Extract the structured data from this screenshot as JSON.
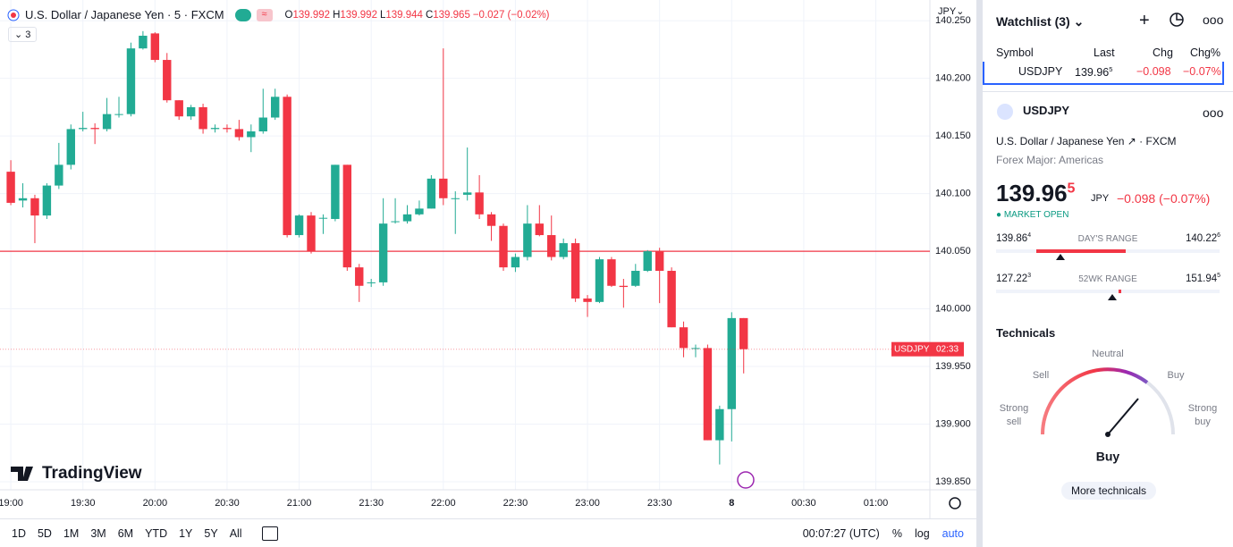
{
  "header": {
    "symbol": "U.S. Dollar / Japanese Yen · 5 · FXCM",
    "indicator_count": "3",
    "ohlc": [
      {
        "key": "O",
        "value": "139.992"
      },
      {
        "key": "H",
        "value": "139.992"
      },
      {
        "key": "L",
        "value": "139.944"
      },
      {
        "key": "C",
        "value": "139.965"
      }
    ],
    "change": "−0.027 (−0.02%)",
    "currency": "JPY"
  },
  "chart_data": {
    "type": "candlestick",
    "up_color": "#22ab94",
    "down_color": "#f23645",
    "open": [
      140.119,
      140.094,
      140.096,
      140.081,
      140.107,
      140.125,
      140.156,
      140.157,
      140.156,
      140.169,
      140.169,
      140.226,
      140.239,
      140.216,
      140.181,
      140.167,
      140.175,
      140.156,
      140.157,
      140.156,
      140.149,
      140.154,
      140.166,
      140.184,
      140.064,
      140.081,
      140.079,
      140.078,
      140.125,
      140.036,
      140.023,
      140.023,
      140.076,
      140.076,
      140.082,
      140.087,
      140.113,
      140.096,
      140.099,
      140.101,
      140.082,
      140.072,
      140.036,
      140.045,
      140.074,
      140.064,
      140.045,
      140.057,
      140.009,
      140.006,
      140.043,
      140.02,
      140.02,
      140.033,
      140.05,
      140.033,
      139.984,
      139.966,
      139.966,
      139.886,
      139.913,
      139.992
    ],
    "high": [
      140.129,
      140.109,
      140.099,
      140.109,
      140.144,
      140.16,
      140.171,
      140.161,
      140.183,
      140.184,
      140.231,
      140.241,
      140.24,
      140.222,
      140.181,
      140.177,
      140.178,
      140.16,
      140.16,
      140.164,
      140.16,
      140.191,
      140.191,
      140.186,
      140.082,
      140.084,
      140.082,
      140.125,
      140.125,
      140.039,
      140.026,
      140.096,
      140.096,
      140.09,
      140.094,
      140.116,
      140.226,
      140.102,
      140.14,
      140.116,
      140.084,
      140.074,
      140.048,
      140.09,
      140.09,
      140.081,
      140.061,
      140.061,
      140.012,
      140.045,
      140.045,
      140.026,
      140.039,
      140.051,
      140.053,
      140.036,
      139.989,
      139.969,
      139.969,
      139.916,
      139.997,
      139.992
    ],
    "low": [
      140.09,
      140.088,
      140.057,
      140.078,
      140.104,
      140.121,
      140.154,
      140.143,
      140.154,
      140.166,
      140.167,
      140.225,
      140.214,
      140.179,
      140.164,
      140.164,
      140.152,
      140.153,
      140.153,
      140.146,
      140.136,
      140.152,
      140.164,
      140.062,
      140.062,
      140.048,
      140.065,
      140.076,
      140.033,
      140.006,
      140.019,
      140.02,
      140.074,
      140.074,
      140.081,
      140.087,
      140.09,
      140.065,
      140.094,
      140.078,
      140.059,
      140.033,
      140.032,
      140.042,
      140.063,
      140.042,
      140.043,
      140.006,
      139.993,
      140.005,
      140.019,
      140.001,
      140.019,
      140.032,
      140.005,
      139.984,
      139.958,
      139.958,
      139.886,
      139.865,
      139.885,
      139.944
    ],
    "close": [
      140.092,
      140.096,
      140.081,
      140.107,
      140.125,
      140.156,
      140.157,
      140.156,
      140.169,
      140.169,
      140.226,
      140.237,
      140.216,
      140.181,
      140.167,
      140.175,
      140.156,
      140.157,
      140.156,
      140.149,
      140.154,
      140.166,
      140.184,
      140.064,
      140.081,
      140.05,
      140.079,
      140.125,
      140.036,
      140.02,
      140.023,
      140.074,
      140.076,
      140.082,
      140.087,
      140.113,
      140.096,
      140.096,
      140.101,
      140.082,
      140.072,
      140.036,
      140.045,
      140.074,
      140.064,
      140.045,
      140.057,
      140.009,
      140.006,
      140.043,
      140.02,
      140.019,
      140.033,
      140.05,
      140.033,
      139.984,
      139.966,
      139.966,
      139.886,
      139.913,
      139.992,
      139.965
    ],
    "xlim": [
      -0.9,
      76.5
    ],
    "xticks": [
      {
        "value": 0,
        "label": "19:00"
      },
      {
        "value": 6,
        "label": "19:30"
      },
      {
        "value": 12,
        "label": "20:00"
      },
      {
        "value": 18,
        "label": "20:30"
      },
      {
        "value": 24,
        "label": "21:00"
      },
      {
        "value": 30,
        "label": "21:30"
      },
      {
        "value": 36,
        "label": "22:00"
      },
      {
        "value": 42,
        "label": "22:30"
      },
      {
        "value": 48,
        "label": "23:00"
      },
      {
        "value": 54,
        "label": "23:30"
      },
      {
        "value": 60,
        "label": "8"
      },
      {
        "value": 66,
        "label": "00:30"
      },
      {
        "value": 72,
        "label": "01:00"
      }
    ],
    "ylim": [
      139.843,
      140.268
    ],
    "yticks": [
      {
        "value": 140.25,
        "label": "140.250"
      },
      {
        "value": 140.2,
        "label": "140.200"
      },
      {
        "value": 140.15,
        "label": "140.150"
      },
      {
        "value": 140.1,
        "label": "140.100"
      },
      {
        "value": 140.05,
        "label": "140.050"
      },
      {
        "value": 140,
        "label": "140.000"
      },
      {
        "value": 139.95,
        "label": "139.950"
      },
      {
        "value": 139.9,
        "label": "139.900"
      },
      {
        "value": 139.85,
        "label": "139.850"
      }
    ],
    "grid": true,
    "hline": {
      "value": 140.05,
      "color": "#f23645"
    },
    "price_label": {
      "symbol": "USDJPY",
      "countdown": "02:33"
    },
    "watermark": "TradingView"
  },
  "toolbar": {
    "ranges": [
      "1D",
      "5D",
      "1M",
      "3M",
      "6M",
      "YTD",
      "1Y",
      "5Y",
      "All"
    ],
    "clock": "00:07:27 (UTC)",
    "options": [
      "%",
      "log",
      "auto"
    ]
  },
  "watchlist": {
    "title": "Watchlist (3)",
    "columns": [
      "Symbol",
      "Last",
      "Chg",
      "Chg%"
    ],
    "row": {
      "symbol": "USDJPY",
      "last": {
        "main": "139.96",
        "pip": "5"
      },
      "chg": "−0.098",
      "chg_pct": "−0.07%"
    }
  },
  "details": {
    "symbol": "USDJPY",
    "name": "U.S. Dollar / Japanese Yen",
    "exchange": "FXCM",
    "category": "Forex Major: Americas",
    "price": {
      "main": "139.96",
      "pip": "5"
    },
    "currency": "JPY",
    "change": "−0.098 (−0.07%)",
    "status": "MARKET OPEN",
    "day_range": {
      "low": {
        "main": "139.86",
        "pip": "4"
      },
      "label": "DAY'S RANGE",
      "high": {
        "main": "140.22",
        "pip": "6"
      }
    },
    "year_range": {
      "low": {
        "main": "127.22",
        "pip": "3"
      },
      "label": "52WK RANGE",
      "high": {
        "main": "151.94",
        "pip": "5"
      }
    }
  },
  "technicals": {
    "title": "Technicals",
    "neutral": "Neutral",
    "sell": "Sell",
    "buy": "Buy",
    "strong_sell": [
      "Strong",
      "sell"
    ],
    "strong_buy": [
      "Strong",
      "buy"
    ],
    "result": "Buy",
    "button": "More technicals"
  }
}
